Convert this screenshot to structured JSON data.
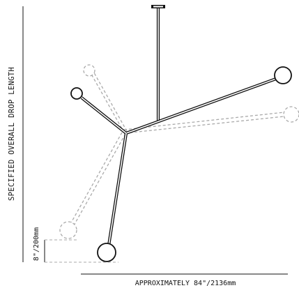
{
  "labels": {
    "drop_length": "SPECIFIED OVERALL DROP LENGTH",
    "width": "APPROXIMATELY 84\"/2136mm",
    "offset": "8\"/200mm"
  }
}
